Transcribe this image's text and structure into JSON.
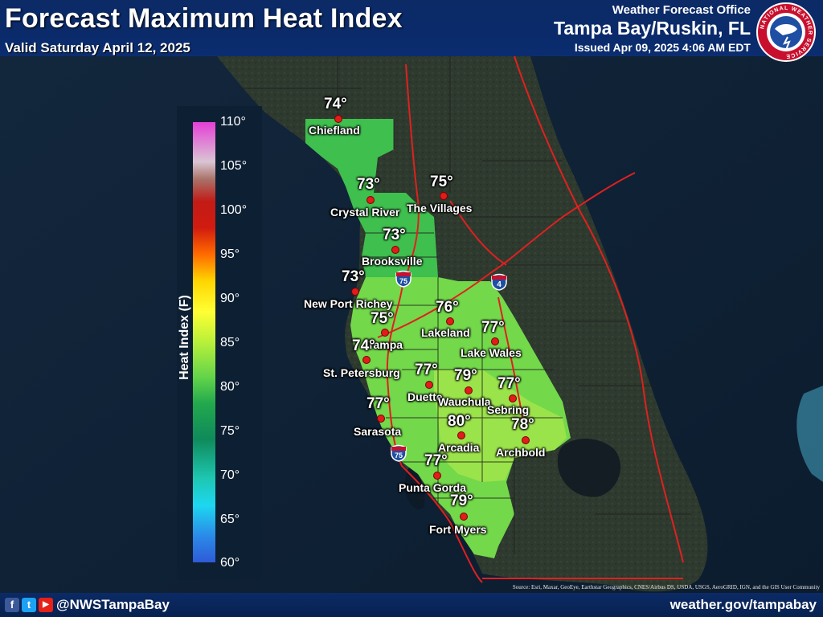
{
  "header": {
    "title": "Forecast Maximum Heat Index",
    "valid": "Valid Saturday April 12, 2025",
    "wfo_label": "Weather Forecast Office",
    "office": "Tampa Bay/Ruskin, FL",
    "issued": "Issued Apr 09, 2025 4:06 AM EDT",
    "logo_text": "NATIONAL WEATHER SERVICE"
  },
  "legend": {
    "label": "Heat Index (F)",
    "ticks": [
      "110°",
      "105°",
      "100°",
      "95°",
      "90°",
      "85°",
      "80°",
      "75°",
      "70°",
      "65°",
      "60°"
    ]
  },
  "points": [
    {
      "city": "Chiefland",
      "temp": "74°"
    },
    {
      "city": "Crystal River",
      "temp": "73°"
    },
    {
      "city": "The Villages",
      "temp": "75°"
    },
    {
      "city": "Brooksville",
      "temp": "73°"
    },
    {
      "city": "New Port Richey",
      "temp": "73°"
    },
    {
      "city": "Lakeland",
      "temp": "76°"
    },
    {
      "city": "Tampa",
      "temp": "75°"
    },
    {
      "city": "Lake Wales",
      "temp": "77°"
    },
    {
      "city": "St. Petersburg",
      "temp": "74°"
    },
    {
      "city": "Duette",
      "temp": "77°"
    },
    {
      "city": "Wauchula",
      "temp": "79°"
    },
    {
      "city": "Sebring",
      "temp": "77°"
    },
    {
      "city": "Sarasota",
      "temp": "77°"
    },
    {
      "city": "Arcadia",
      "temp": "80°"
    },
    {
      "city": "Archbold",
      "temp": "78°"
    },
    {
      "city": "Punta Gorda",
      "temp": "77°"
    },
    {
      "city": "Fort Myers",
      "temp": "79°"
    }
  ],
  "highways": {
    "i75": "75",
    "i4": "4"
  },
  "footer": {
    "social": [
      "f",
      "t",
      "▶"
    ],
    "handle": "@NWSTampaBay",
    "website": "weather.gov/tampabay",
    "source": "Source: Esri, Maxar, GeoEye, Earthstar Geographics, CNES/Airbus DS, USDA, USGS, AeroGRID, IGN, and the GIS User Community"
  },
  "colors": {
    "header_bg": "#0b2a66",
    "ocean": "#0e2036",
    "land": "#2f3a30",
    "dot": "#e21b1b",
    "road": "#e02020"
  }
}
